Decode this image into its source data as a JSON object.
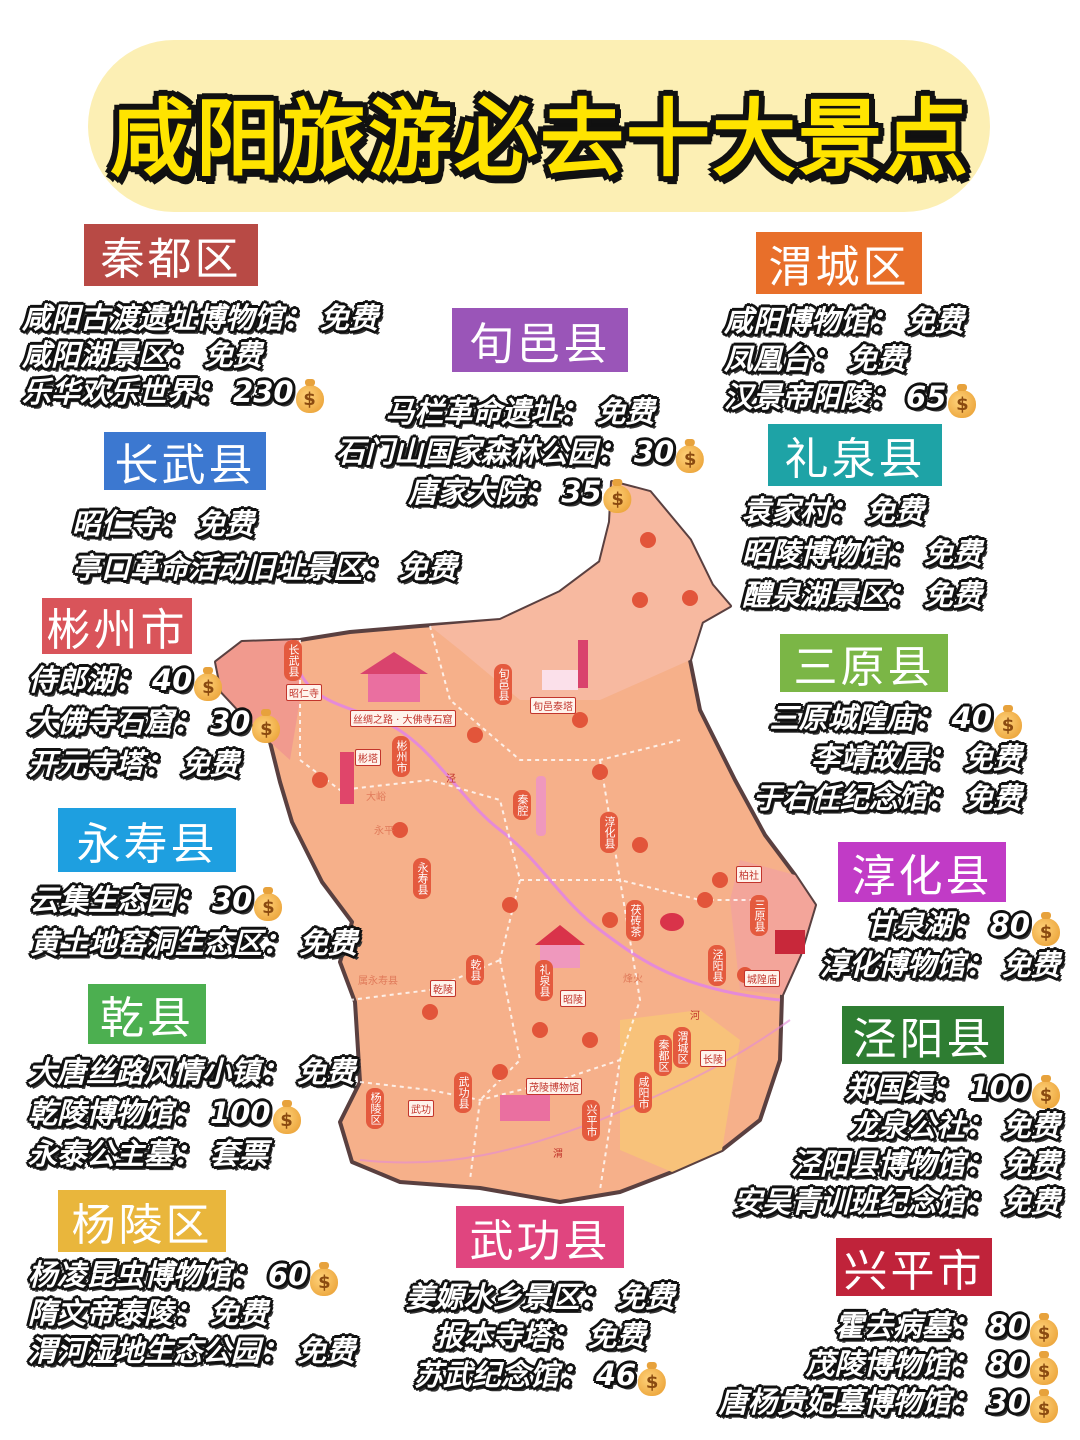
{
  "title": "咸阳旅游必去十大景点",
  "currency_icon": "money-bag-icon",
  "sections": [
    {
      "name": "秦都区",
      "color": "#b84a45",
      "items": [
        {
          "name": "咸阳古渡遗址博物馆：",
          "price": "免费",
          "paid": false
        },
        {
          "name": "咸阳湖景区：",
          "price": "免费",
          "paid": false
        },
        {
          "name": "乐华欢乐世界：",
          "price": "230",
          "paid": true
        }
      ]
    },
    {
      "name": "旬邑县",
      "color": "#9a55b8",
      "items": [
        {
          "name": "马栏革命遗址：",
          "price": "免费",
          "paid": false
        },
        {
          "name": "石门山国家森林公园：",
          "price": "30",
          "paid": true
        },
        {
          "name": "唐家大院：",
          "price": "35",
          "paid": true
        }
      ]
    },
    {
      "name": "渭城区",
      "color": "#e86f2a",
      "items": [
        {
          "name": "咸阳博物馆：",
          "price": "免费",
          "paid": false
        },
        {
          "name": "凤凰台：",
          "price": "免费",
          "paid": false
        },
        {
          "name": "汉景帝阳陵：",
          "price": "65",
          "paid": true
        }
      ]
    },
    {
      "name": "长武县",
      "color": "#3c78d0",
      "items": [
        {
          "name": "昭仁寺：",
          "price": "免费",
          "paid": false
        },
        {
          "name": "亭口革命活动旧址景区：",
          "price": "免费",
          "paid": false
        }
      ]
    },
    {
      "name": "礼泉县",
      "color": "#1ea3a6",
      "items": [
        {
          "name": "袁家村：",
          "price": "免费",
          "paid": false
        },
        {
          "name": "昭陵博物馆：",
          "price": "免费",
          "paid": false
        },
        {
          "name": "醴泉湖景区：",
          "price": "免费",
          "paid": false
        }
      ]
    },
    {
      "name": "彬州市",
      "color": "#d9545a",
      "items": [
        {
          "name": "侍郎湖：",
          "price": "40",
          "paid": true
        },
        {
          "name": "大佛寺石窟：",
          "price": "30",
          "paid": true
        },
        {
          "name": "开元寺塔：",
          "price": "免费",
          "paid": false
        }
      ]
    },
    {
      "name": "三原县",
      "color": "#7bb646",
      "items": [
        {
          "name": "三原城隍庙：",
          "price": "40",
          "paid": true
        },
        {
          "name": "李靖故居：",
          "price": "免费",
          "paid": false
        },
        {
          "name": "于右任纪念馆：",
          "price": "免费",
          "paid": false
        }
      ]
    },
    {
      "name": "永寿县",
      "color": "#1e9fe0",
      "items": [
        {
          "name": "云集生态园：",
          "price": "30",
          "paid": true
        },
        {
          "name": "黄土地窑洞生态区：",
          "price": "免费",
          "paid": false
        }
      ]
    },
    {
      "name": "淳化县",
      "color": "#c13bc6",
      "items": [
        {
          "name": "甘泉湖：",
          "price": "80",
          "paid": true
        },
        {
          "name": "淳化博物馆：",
          "price": "免费",
          "paid": false
        }
      ]
    },
    {
      "name": "乾县",
      "color": "#4caf50",
      "items": [
        {
          "name": "大唐丝路风情小镇：",
          "price": "免费",
          "paid": false
        },
        {
          "name": "乾陵博物馆：",
          "price": "100",
          "paid": true
        },
        {
          "name": "永泰公主墓：",
          "price": "套票",
          "paid": false
        }
      ]
    },
    {
      "name": "泾阳县",
      "color": "#2e7d32",
      "items": [
        {
          "name": "郑国渠：",
          "price": "100",
          "paid": true
        },
        {
          "name": "龙泉公社：",
          "price": "免费",
          "paid": false
        },
        {
          "name": "泾阳县博物馆：",
          "price": "免费",
          "paid": false
        },
        {
          "name": "安吴青训班纪念馆：",
          "price": "免费",
          "paid": false
        }
      ]
    },
    {
      "name": "杨陵区",
      "color": "#e9b63c",
      "items": [
        {
          "name": "杨凌昆虫博物馆：",
          "price": "60",
          "paid": true
        },
        {
          "name": "隋文帝泰陵：",
          "price": "免费",
          "paid": false
        },
        {
          "name": "渭河湿地生态公园：",
          "price": "免费",
          "paid": false
        }
      ]
    },
    {
      "name": "武功县",
      "color": "#e0457f",
      "items": [
        {
          "name": "姜嫄水乡景区：",
          "price": "免费",
          "paid": false
        },
        {
          "name": "报本寺塔：",
          "price": "免费",
          "paid": false
        },
        {
          "name": "苏武纪念馆：",
          "price": "46",
          "paid": true
        }
      ]
    },
    {
      "name": "兴平市",
      "color": "#c0233a",
      "items": [
        {
          "name": "霍去病墓：",
          "price": "80",
          "paid": true
        },
        {
          "name": "茂陵博物馆：",
          "price": "80",
          "paid": true
        },
        {
          "name": "唐杨贵妃墓博物馆：",
          "price": "30",
          "paid": true
        }
      ]
    }
  ],
  "map": {
    "colors": {
      "land": "#f6b08a",
      "border": "#5a4040",
      "river": "#e58ad8"
    },
    "labels": [
      "长武县",
      "昭仁寺",
      "丝绸之路 · 大佛寺石窟",
      "旬邑县",
      "旬邑泰塔",
      "彬塔",
      "彬州市",
      "大峪",
      "泾",
      "秦腔",
      "淳化县",
      "永平",
      "永寿县",
      "柏社",
      "茯砖茶",
      "三原县",
      "城隍庙",
      "泾阳县",
      "属永寿县",
      "乾陵",
      "乾县",
      "礼泉县",
      "昭陵",
      "烽火",
      "河",
      "长陵",
      "秦都区",
      "渭城区",
      "武功",
      "武功县",
      "杨陵区",
      "茂陵博物馆",
      "兴平市",
      "咸阳市",
      "渭"
    ]
  }
}
